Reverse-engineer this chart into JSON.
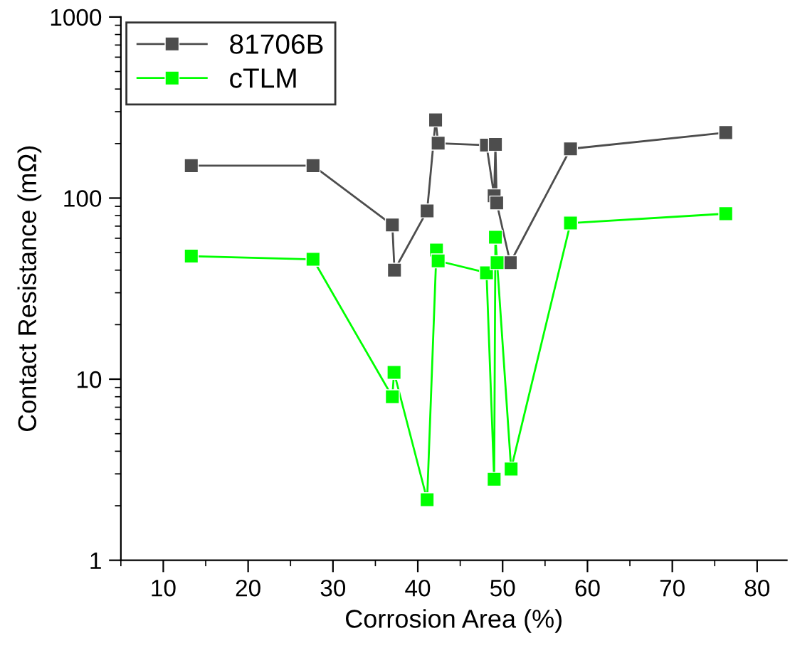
{
  "chart_data": {
    "type": "line",
    "xlabel": "Corrosion Area (%)",
    "ylabel": "Contact Resistance (mΩ)",
    "log": "y",
    "xlim": [
      5,
      83.5
    ],
    "ylim": [
      1,
      1000
    ],
    "xticks": [
      10,
      20,
      30,
      40,
      50,
      60,
      70,
      80
    ],
    "yticks": [
      1,
      10,
      100,
      1000
    ],
    "grid": false,
    "legend": "top left",
    "marker": "square",
    "line_style": "solid",
    "series": [
      {
        "name": "81706B",
        "color": "#4d4d4d",
        "x": [
          13.3,
          27.65,
          37.0,
          37.25,
          41.1,
          42.1,
          42.4,
          48.1,
          49.0,
          49.15,
          49.3,
          50.9,
          58.0,
          76.3
        ],
        "values": [
          151,
          151,
          71,
          40,
          85,
          270,
          201,
          196,
          103,
          198,
          94,
          44,
          187,
          230
        ]
      },
      {
        "name": "cTLM",
        "color": "#00ff00",
        "x": [
          13.3,
          27.65,
          37.0,
          37.2,
          41.1,
          42.2,
          42.4,
          48.1,
          49.0,
          49.15,
          49.35,
          51.0,
          58.0,
          76.3
        ],
        "values": [
          47.8,
          45.9,
          8.0,
          10.9,
          2.16,
          51.7,
          45,
          38.7,
          2.8,
          60.8,
          44,
          3.19,
          72.8,
          82
        ]
      }
    ]
  }
}
